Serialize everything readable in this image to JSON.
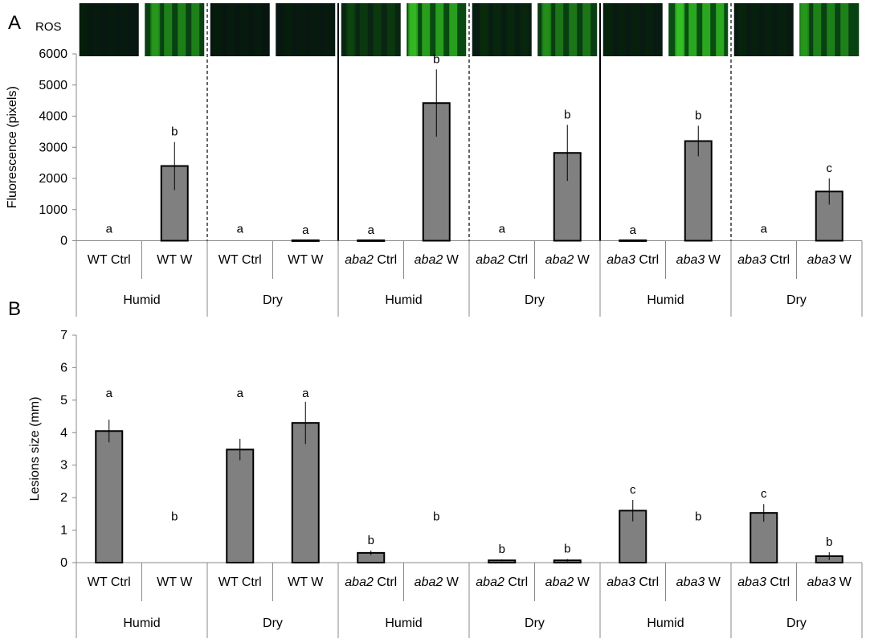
{
  "chart_data": [
    {
      "panel_label": "A",
      "panel_sublabel": "ROS",
      "type": "bar",
      "ylabel": "Fluorescence (pixels)",
      "ylim": [
        0,
        6000
      ],
      "yticks": [
        "0",
        "1000",
        "2000",
        "3000",
        "4000",
        "5000",
        "6000"
      ],
      "categories": [
        {
          "genotype": "WT",
          "treatment": "Ctrl"
        },
        {
          "genotype": "WT",
          "treatment": "W"
        },
        {
          "genotype": "WT",
          "treatment": "Ctrl"
        },
        {
          "genotype": "WT",
          "treatment": "W"
        },
        {
          "genotype": "aba2",
          "treatment": "Ctrl"
        },
        {
          "genotype": "aba2",
          "treatment": "W"
        },
        {
          "genotype": "aba2",
          "treatment": "Ctrl"
        },
        {
          "genotype": "aba2",
          "treatment": "W"
        },
        {
          "genotype": "aba3",
          "treatment": "Ctrl"
        },
        {
          "genotype": "aba3",
          "treatment": "W"
        },
        {
          "genotype": "aba3",
          "treatment": "Ctrl"
        },
        {
          "genotype": "aba3",
          "treatment": "W"
        }
      ],
      "groups": [
        "Humid",
        "Dry",
        "Humid",
        "Dry",
        "Humid",
        "Dry"
      ],
      "values": [
        0,
        2400,
        0,
        15,
        15,
        4420,
        0,
        2820,
        15,
        3200,
        0,
        1580
      ],
      "errors": [
        0,
        770,
        0,
        0,
        0,
        1080,
        0,
        900,
        0,
        490,
        0,
        420
      ],
      "significance": [
        "a",
        "b",
        "a",
        "a",
        "a",
        "b",
        "a",
        "b",
        "a",
        "b",
        "a",
        "c"
      ],
      "image_brightness": [
        0.05,
        0.75,
        0.04,
        0.05,
        0.3,
        0.9,
        0.15,
        0.7,
        0.1,
        0.95,
        0.1,
        0.75
      ]
    },
    {
      "panel_label": "B",
      "type": "bar",
      "ylabel": "Lesions size (mm)",
      "ylim": [
        0,
        7
      ],
      "yticks": [
        "0",
        "1",
        "2",
        "3",
        "4",
        "5",
        "6",
        "7"
      ],
      "categories": [
        {
          "genotype": "WT",
          "treatment": "Ctrl"
        },
        {
          "genotype": "WT",
          "treatment": "W"
        },
        {
          "genotype": "WT",
          "treatment": "Ctrl"
        },
        {
          "genotype": "WT",
          "treatment": "W"
        },
        {
          "genotype": "aba2",
          "treatment": "Ctrl"
        },
        {
          "genotype": "aba2",
          "treatment": "W"
        },
        {
          "genotype": "aba2",
          "treatment": "Ctrl"
        },
        {
          "genotype": "aba2",
          "treatment": "W"
        },
        {
          "genotype": "aba3",
          "treatment": "Ctrl"
        },
        {
          "genotype": "aba3",
          "treatment": "W"
        },
        {
          "genotype": "aba3",
          "treatment": "Ctrl"
        },
        {
          "genotype": "aba3",
          "treatment": "W"
        }
      ],
      "groups": [
        "Humid",
        "Dry",
        "Humid",
        "Dry",
        "Humid",
        "Dry"
      ],
      "values": [
        4.05,
        0,
        3.48,
        4.3,
        0.3,
        0,
        0.07,
        0.07,
        1.6,
        0,
        1.53,
        0.2
      ],
      "errors": [
        0.35,
        0,
        0.33,
        0.65,
        0.07,
        0,
        0.03,
        0.04,
        0.33,
        0,
        0.27,
        0.12
      ],
      "significance": [
        "a",
        "b",
        "a",
        "a",
        "b",
        "b",
        "b",
        "b",
        "c",
        "b",
        "c",
        "b"
      ]
    }
  ]
}
